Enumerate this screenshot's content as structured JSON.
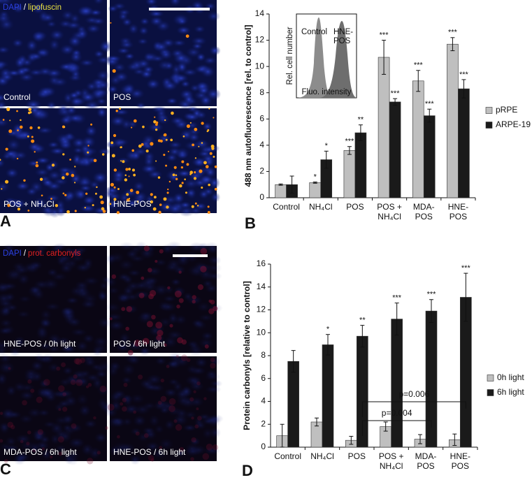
{
  "figure": {
    "panel_labels": [
      "A",
      "B",
      "C",
      "D"
    ],
    "micrograph_sets": [
      {
        "stain": "DAPI",
        "separator": "/",
        "marker": "lipofuscin",
        "captions": [
          "Control",
          "POS",
          "POS + NH₄Cl",
          "HNE-POS"
        ]
      },
      {
        "stain": "DAPI",
        "separator": "/",
        "marker": "prot. carbonyls",
        "captions": [
          "HNE-POS / 0h light",
          "POS / 6h light",
          "MDA-POS / 6h light",
          "HNE-POS / 6h light"
        ]
      }
    ]
  },
  "chart_data": [
    {
      "type": "bar",
      "y_label": "488 nm autofluorescence [rel. to control]",
      "categories": [
        "Control",
        "NH₄Cl",
        "POS",
        "POS + NH₄Cl",
        "MDA-POS",
        "HNE-POS"
      ],
      "ylim": [
        0,
        14
      ],
      "yticks": [
        0,
        2,
        4,
        6,
        8,
        10,
        12,
        14
      ],
      "series": [
        {
          "name": "pRPE",
          "color": "#bfbfbf",
          "values": [
            1.0,
            1.15,
            3.6,
            10.7,
            8.9,
            11.7
          ],
          "errors": [
            0.05,
            0.05,
            0.3,
            1.3,
            0.8,
            0.5
          ],
          "significance": [
            null,
            "*",
            "***",
            "***",
            "***",
            "***"
          ]
        },
        {
          "name": "ARPE-19",
          "color": "#1a1a1a",
          "values": [
            1.0,
            2.9,
            4.95,
            7.3,
            6.25,
            8.3
          ],
          "errors": [
            0.65,
            0.65,
            0.6,
            0.25,
            0.5,
            0.7
          ],
          "significance": [
            null,
            "*",
            "**",
            "***",
            "***",
            "***"
          ]
        }
      ],
      "inset": {
        "y_label": "Rel. cell number",
        "x_label": "Fluo. intensity",
        "labels": [
          "Control",
          "HNE-POS"
        ]
      }
    },
    {
      "type": "bar",
      "y_label": "Protein carbonyls [relative to control]",
      "categories": [
        "Control",
        "NH₄Cl",
        "POS",
        "POS + NH₄Cl",
        "MDA-POS",
        "HNE-POS"
      ],
      "ylim": [
        0,
        16
      ],
      "yticks": [
        0,
        2,
        4,
        6,
        8,
        10,
        12,
        14,
        16
      ],
      "series": [
        {
          "name": "0h light",
          "color": "#bfbfbf",
          "values": [
            1.0,
            2.2,
            0.6,
            1.8,
            0.7,
            0.65
          ],
          "errors": [
            1.0,
            0.35,
            0.35,
            0.4,
            0.4,
            0.5
          ],
          "significance": [
            null,
            null,
            null,
            null,
            null,
            null
          ]
        },
        {
          "name": "6h light",
          "color": "#1a1a1a",
          "values": [
            7.5,
            8.95,
            9.7,
            11.2,
            11.9,
            13.1
          ],
          "errors": [
            0.95,
            0.9,
            0.95,
            1.4,
            1.0,
            2.1
          ],
          "significance": [
            null,
            "*",
            "**",
            "***",
            "***",
            "***"
          ]
        }
      ],
      "brackets": [
        {
          "from": "POS",
          "to": "MDA-POS",
          "label": "p=0.004"
        },
        {
          "from": "POS",
          "to": "HNE-POS",
          "label": "p=0.006"
        }
      ]
    }
  ]
}
